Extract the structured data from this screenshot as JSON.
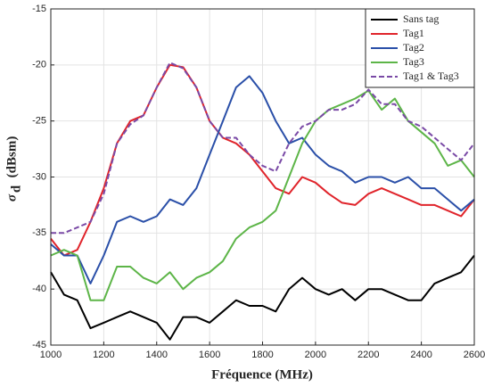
{
  "chart_data": {
    "type": "line",
    "xlabel": "Fréquence (MHz)",
    "ylabel_symbol": "σ",
    "ylabel_subscript": "d",
    "ylabel_unit": "(dBsm)",
    "x": [
      1000,
      1050,
      1100,
      1150,
      1200,
      1250,
      1300,
      1350,
      1400,
      1450,
      1500,
      1550,
      1600,
      1650,
      1700,
      1750,
      1800,
      1850,
      1900,
      1950,
      2000,
      2050,
      2100,
      2150,
      2200,
      2250,
      2300,
      2350,
      2400,
      2450,
      2500,
      2550,
      2600
    ],
    "series": [
      {
        "name": "Sans tag",
        "color": "#000000",
        "dash": false,
        "values": [
          -38.5,
          -40.5,
          -41,
          -43.5,
          -43,
          -42.5,
          -42,
          -42.5,
          -43,
          -44.5,
          -42.5,
          -42.5,
          -43,
          -42,
          -41,
          -41.5,
          -41.5,
          -42,
          -40,
          -39,
          -40,
          -40.5,
          -40,
          -41,
          -40,
          -40,
          -40.5,
          -41,
          -41,
          -39.5,
          -39,
          -38.5,
          -37
        ]
      },
      {
        "name": "Tag1",
        "color": "#e0242b",
        "dash": false,
        "values": [
          -35.5,
          -37,
          -36.5,
          -34,
          -31,
          -27,
          -25,
          -24.5,
          -22,
          -20,
          -20.2,
          -22,
          -25,
          -26.5,
          -27,
          -28,
          -29.5,
          -31,
          -31.5,
          -30,
          -30.5,
          -31.5,
          -32.3,
          -32.5,
          -31.5,
          -31,
          -31.5,
          -32,
          -32.5,
          -32.5,
          -33,
          -33.5,
          -32
        ]
      },
      {
        "name": "Tag2",
        "color": "#2a4fa8",
        "dash": false,
        "values": [
          -36,
          -37,
          -37,
          -39.5,
          -37,
          -34,
          -33.5,
          -34,
          -33.5,
          -32,
          -32.5,
          -31,
          -28,
          -25,
          -22,
          -21,
          -22.5,
          -25,
          -27,
          -26.5,
          -28,
          -29,
          -29.5,
          -30.5,
          -30,
          -30,
          -30.5,
          -30,
          -31,
          -31,
          -32,
          -33,
          -32
        ]
      },
      {
        "name": "Tag3",
        "color": "#5db548",
        "dash": false,
        "values": [
          -37,
          -36.5,
          -37,
          -41,
          -41,
          -38,
          -38,
          -39,
          -39.5,
          -38.5,
          -40,
          -39,
          -38.5,
          -37.5,
          -35.5,
          -34.5,
          -34,
          -33,
          -30,
          -27,
          -25,
          -24,
          -23.5,
          -23,
          -22.3,
          -24,
          -23,
          -25,
          -26,
          -27,
          -29,
          -28.5,
          -30
        ]
      },
      {
        "name": "Tag1 & Tag3",
        "color": "#7a4aa6",
        "dash": true,
        "values": [
          -35,
          -35,
          -34.5,
          -34,
          -31.5,
          -27,
          -25.3,
          -24.5,
          -22,
          -19.8,
          -20.3,
          -22,
          -25,
          -26.5,
          -26.5,
          -28,
          -29,
          -29.5,
          -27,
          -25.5,
          -25,
          -24,
          -24,
          -23.5,
          -22.2,
          -23.5,
          -23.5,
          -25,
          -25.5,
          -26.5,
          -27.5,
          -28.5,
          -27
        ]
      }
    ],
    "xlim": [
      1000,
      2600
    ],
    "xticks": [
      1000,
      1200,
      1400,
      1600,
      1800,
      2000,
      2200,
      2400,
      2600
    ],
    "ylim": [
      -45,
      -15
    ],
    "yticks": [
      -45,
      -40,
      -35,
      -30,
      -25,
      -20,
      -15
    ],
    "grid": true,
    "legend": "upper right"
  }
}
